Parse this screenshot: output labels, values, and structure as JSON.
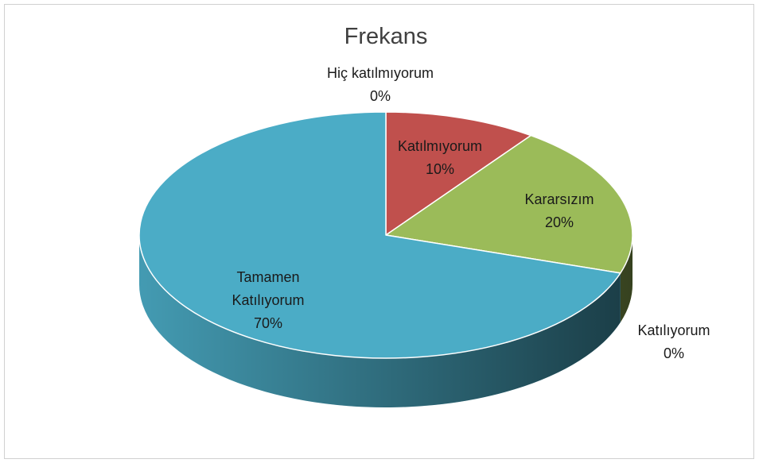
{
  "chart_data": {
    "type": "pie",
    "title": "Frekans",
    "categories": [
      "Hiç katılmıyorum",
      "Katılmıyorum",
      "Kararsızım",
      "Katılıyorum",
      "Tamamen Katılıyorum"
    ],
    "values": [
      0,
      10,
      20,
      0,
      70
    ],
    "value_labels": [
      "0%",
      "10%",
      "20%",
      "0%",
      "70%"
    ],
    "colors": [
      "#4f81bd",
      "#c0504d",
      "#9bbb59",
      "#8064a2",
      "#4bacc6"
    ]
  }
}
